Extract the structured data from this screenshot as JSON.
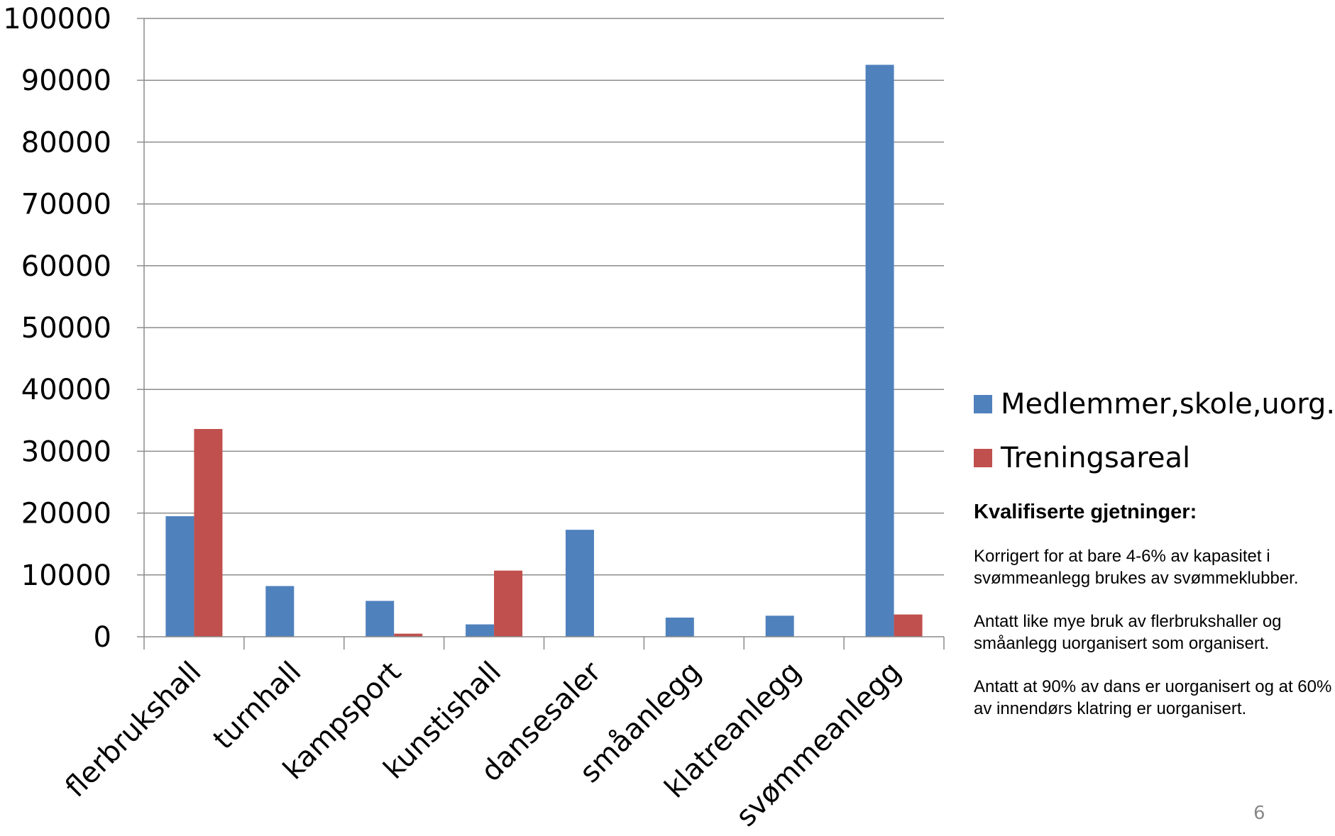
{
  "chart_data": {
    "type": "bar",
    "categories": [
      "flerbrukshall",
      "turnhall",
      "kampsport",
      "kunstishall",
      "dansesaler",
      "småanlegg",
      "klatreanlegg",
      "svømmeanlegg"
    ],
    "series": [
      {
        "name": "Medlemmer,skole,uorg.",
        "color": "#4F81BD",
        "values": [
          19500,
          8200,
          5800,
          2000,
          17300,
          3100,
          3400,
          92500
        ]
      },
      {
        "name": "Treningsareal",
        "color": "#C0504D",
        "values": [
          33600,
          0,
          500,
          10700,
          0,
          0,
          0,
          3600
        ]
      }
    ],
    "y_ticks": [
      "0",
      "10000",
      "20000",
      "30000",
      "40000",
      "50000",
      "60000",
      "70000",
      "80000",
      "90000",
      "100000"
    ],
    "ylim": [
      0,
      100000
    ],
    "grid": true,
    "legend_position": "right"
  },
  "notes": {
    "heading": "Kvalifiserte gjetninger:",
    "items": [
      "Korrigert for at bare 4-6% av kapasitet i svømmeanlegg brukes av svømmeklubber.",
      "Antatt like mye bruk av flerbrukshaller og småanlegg uorganisert som organisert.",
      "Antatt at 90% av dans er uorganisert og at 60% av innendørs klatring er uorganisert."
    ]
  },
  "page_number": "6"
}
